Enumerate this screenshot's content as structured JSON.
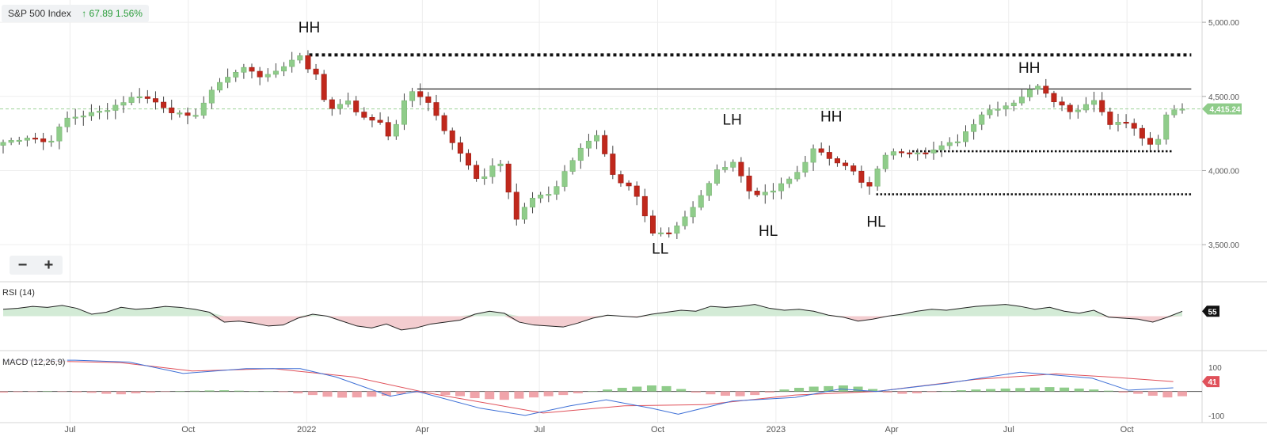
{
  "header": {
    "ticker_name": "S&P 500 Index",
    "change_arrow": "↑",
    "change_value": "67.89",
    "change_pct": "1.56%"
  },
  "zoom": {
    "minus": "−",
    "plus": "+"
  },
  "panels": {
    "rsi_label": "RSI (14)",
    "macd_label": "MACD (12,26,9)"
  },
  "colors": {
    "up": "#8fcc8a",
    "down": "#c0281c",
    "rsi_line": "#222222",
    "macd_line": "#3d6fd6",
    "signal_line": "#e0515a",
    "hist_up": "#8fcc8a",
    "hist_down": "#f0a4aa",
    "rsi_above_fill": "#d3ebd6",
    "rsi_below_fill": "#f3cdd0",
    "price_badge": "#8fcc8a"
  },
  "chart_data": {
    "type": "candlestick",
    "interval": "weekly",
    "x_ticks": [
      "Jul",
      "Oct",
      "2022",
      "Apr",
      "Jul",
      "Oct",
      "2023",
      "Apr",
      "Jul",
      "Oct"
    ],
    "y_ticks": [
      "3,500.00",
      "4,000.00",
      "4,500.00",
      "5,000.00"
    ],
    "y_range": [
      3250,
      5150
    ],
    "last_price_label": "4,415.24",
    "last_price": 4415.24,
    "close_path": [
      {
        "d": "2021-05-10",
        "c": 4190
      },
      {
        "d": "2021-05-31",
        "c": 4230
      },
      {
        "d": "2021-06-14",
        "c": 4180
      },
      {
        "d": "2021-06-28",
        "c": 4350
      },
      {
        "d": "2021-07-26",
        "c": 4400
      },
      {
        "d": "2021-08-23",
        "c": 4510
      },
      {
        "d": "2021-09-06",
        "c": 4460
      },
      {
        "d": "2021-09-20",
        "c": 4390
      },
      {
        "d": "2021-10-04",
        "c": 4350
      },
      {
        "d": "2021-10-25",
        "c": 4600
      },
      {
        "d": "2021-11-15",
        "c": 4700
      },
      {
        "d": "2021-11-29",
        "c": 4620
      },
      {
        "d": "2021-12-27",
        "c": 4780
      },
      {
        "d": "2022-01-03",
        "c": 4680
      },
      {
        "d": "2022-01-10",
        "c": 4630
      },
      {
        "d": "2022-01-17",
        "c": 4400
      },
      {
        "d": "2022-01-31",
        "c": 4480
      },
      {
        "d": "2022-02-14",
        "c": 4350
      },
      {
        "d": "2022-02-28",
        "c": 4330
      },
      {
        "d": "2022-03-07",
        "c": 4200
      },
      {
        "d": "2022-03-21",
        "c": 4540
      },
      {
        "d": "2022-04-04",
        "c": 4490
      },
      {
        "d": "2022-04-18",
        "c": 4280
      },
      {
        "d": "2022-05-02",
        "c": 4100
      },
      {
        "d": "2022-05-16",
        "c": 3900
      },
      {
        "d": "2022-05-30",
        "c": 4100
      },
      {
        "d": "2022-06-13",
        "c": 3670
      },
      {
        "d": "2022-06-27",
        "c": 3830
      },
      {
        "d": "2022-07-11",
        "c": 3850
      },
      {
        "d": "2022-08-01",
        "c": 4150
      },
      {
        "d": "2022-08-15",
        "c": 4230
      },
      {
        "d": "2022-08-29",
        "c": 3920
      },
      {
        "d": "2022-09-12",
        "c": 3880
      },
      {
        "d": "2022-09-26",
        "c": 3590
      },
      {
        "d": "2022-10-10",
        "c": 3580
      },
      {
        "d": "2022-10-31",
        "c": 3770
      },
      {
        "d": "2022-11-14",
        "c": 3980
      },
      {
        "d": "2022-11-28",
        "c": 4070
      },
      {
        "d": "2022-12-12",
        "c": 3850
      },
      {
        "d": "2022-12-26",
        "c": 3840
      },
      {
        "d": "2023-01-16",
        "c": 3970
      },
      {
        "d": "2023-01-30",
        "c": 4140
      },
      {
        "d": "2023-02-13",
        "c": 4080
      },
      {
        "d": "2023-02-27",
        "c": 4030
      },
      {
        "d": "2023-03-13",
        "c": 3860
      },
      {
        "d": "2023-03-27",
        "c": 4110
      },
      {
        "d": "2023-04-10",
        "c": 4130
      },
      {
        "d": "2023-05-01",
        "c": 4130
      },
      {
        "d": "2023-05-22",
        "c": 4200
      },
      {
        "d": "2023-06-12",
        "c": 4400
      },
      {
        "d": "2023-07-03",
        "c": 4450
      },
      {
        "d": "2023-07-24",
        "c": 4580
      },
      {
        "d": "2023-08-07",
        "c": 4460
      },
      {
        "d": "2023-08-21",
        "c": 4390
      },
      {
        "d": "2023-09-04",
        "c": 4490
      },
      {
        "d": "2023-09-18",
        "c": 4320
      },
      {
        "d": "2023-10-02",
        "c": 4320
      },
      {
        "d": "2023-10-23",
        "c": 4130
      },
      {
        "d": "2023-10-30",
        "c": 4360
      },
      {
        "d": "2023-11-06",
        "c": 4415
      }
    ],
    "annotations": [
      {
        "text": "HH",
        "date": "2022-01-03",
        "price": 4930
      },
      {
        "text": "LL",
        "date": "2022-10-03",
        "price": 3440
      },
      {
        "text": "LH",
        "date": "2022-11-28",
        "price": 4310
      },
      {
        "text": "HL",
        "date": "2022-12-26",
        "price": 3560
      },
      {
        "text": "HH",
        "date": "2023-02-13",
        "price": 4330
      },
      {
        "text": "HL",
        "date": "2023-03-20",
        "price": 3620
      },
      {
        "text": "HH",
        "date": "2023-07-17",
        "price": 4660
      }
    ],
    "horizontal_lines": [
      {
        "style": "dotted-thick",
        "price": 4780,
        "from": "2022-01-03",
        "to": "2023-11-20"
      },
      {
        "style": "solid",
        "price": 4550,
        "from": "2022-03-28",
        "to": "2023-11-20"
      },
      {
        "style": "dotted",
        "price": 4130,
        "from": "2023-04-17",
        "to": "2023-11-06"
      },
      {
        "style": "dotted",
        "price": 3840,
        "from": "2023-03-20",
        "to": "2023-11-20"
      }
    ],
    "rsi": {
      "label": "RSI (14)",
      "last_value": "55",
      "last": 55,
      "midline": 50,
      "values": [
        57,
        58,
        60,
        59,
        61,
        58,
        52,
        54,
        59,
        57,
        58,
        60,
        59,
        57,
        54,
        44,
        45,
        43,
        40,
        41,
        48,
        52,
        50,
        45,
        40,
        38,
        42,
        36,
        38,
        42,
        44,
        46,
        52,
        55,
        53,
        44,
        41,
        40,
        39,
        43,
        48,
        51,
        50,
        49,
        52,
        54,
        56,
        55,
        60,
        59,
        60,
        62,
        58,
        56,
        57,
        55,
        51,
        49,
        45,
        47,
        50,
        52,
        55,
        57,
        56,
        58,
        60,
        61,
        62,
        60,
        57,
        59,
        55,
        53,
        56,
        49,
        48,
        47,
        44,
        49,
        55
      ]
    },
    "macd": {
      "label": "MACD (12,26,9)",
      "y_ticks": [
        "100",
        "-100"
      ],
      "y_range": [
        -130,
        170
      ],
      "last_value": "41",
      "last": 41,
      "macd_path": [
        {
          "d": "2021-05-10",
          "v": 130
        },
        {
          "d": "2021-07-05",
          "v": 130
        },
        {
          "d": "2021-08-16",
          "v": 122
        },
        {
          "d": "2021-09-27",
          "v": 75
        },
        {
          "d": "2021-11-15",
          "v": 95
        },
        {
          "d": "2021-12-27",
          "v": 95
        },
        {
          "d": "2022-01-24",
          "v": 60
        },
        {
          "d": "2022-03-07",
          "v": -20
        },
        {
          "d": "2022-03-28",
          "v": 0
        },
        {
          "d": "2022-05-16",
          "v": -70
        },
        {
          "d": "2022-06-20",
          "v": -100
        },
        {
          "d": "2022-07-25",
          "v": -60
        },
        {
          "d": "2022-08-22",
          "v": -35
        },
        {
          "d": "2022-09-26",
          "v": -70
        },
        {
          "d": "2022-10-17",
          "v": -95
        },
        {
          "d": "2022-11-28",
          "v": -40
        },
        {
          "d": "2023-01-16",
          "v": -25
        },
        {
          "d": "2023-02-20",
          "v": 10
        },
        {
          "d": "2023-03-20",
          "v": 0
        },
        {
          "d": "2023-05-15",
          "v": 35
        },
        {
          "d": "2023-07-10",
          "v": 80
        },
        {
          "d": "2023-08-07",
          "v": 68
        },
        {
          "d": "2023-09-04",
          "v": 55
        },
        {
          "d": "2023-10-02",
          "v": 5
        },
        {
          "d": "2023-11-06",
          "v": 15
        }
      ],
      "signal_path": [
        {
          "d": "2021-05-10",
          "v": 130
        },
        {
          "d": "2021-08-09",
          "v": 120
        },
        {
          "d": "2021-10-04",
          "v": 85
        },
        {
          "d": "2021-12-06",
          "v": 95
        },
        {
          "d": "2022-02-07",
          "v": 60
        },
        {
          "d": "2022-04-04",
          "v": -5
        },
        {
          "d": "2022-07-04",
          "v": -90
        },
        {
          "d": "2022-09-05",
          "v": -60
        },
        {
          "d": "2022-11-07",
          "v": -55
        },
        {
          "d": "2023-01-16",
          "v": -15
        },
        {
          "d": "2023-03-20",
          "v": 0
        },
        {
          "d": "2023-06-05",
          "v": 50
        },
        {
          "d": "2023-08-07",
          "v": 73
        },
        {
          "d": "2023-09-18",
          "v": 60
        },
        {
          "d": "2023-11-06",
          "v": 41
        }
      ],
      "histogram": [
        -5,
        -3,
        -2,
        0,
        -2,
        -4,
        -6,
        -10,
        -12,
        -8,
        -5,
        -2,
        0,
        3,
        4,
        5,
        3,
        1,
        0,
        -3,
        -8,
        -15,
        -22,
        -26,
        -25,
        -22,
        -18,
        -10,
        -5,
        -2,
        -15,
        -20,
        -28,
        -32,
        -35,
        -30,
        -25,
        -20,
        -15,
        -8,
        0,
        8,
        15,
        20,
        25,
        22,
        10,
        -5,
        -12,
        -18,
        -20,
        -15,
        -5,
        8,
        15,
        20,
        22,
        25,
        20,
        10,
        -5,
        -10,
        -8,
        -3,
        2,
        5,
        8,
        10,
        12,
        14,
        16,
        18,
        16,
        12,
        8,
        3,
        -5,
        -10,
        -18,
        -25,
        -20
      ]
    }
  }
}
